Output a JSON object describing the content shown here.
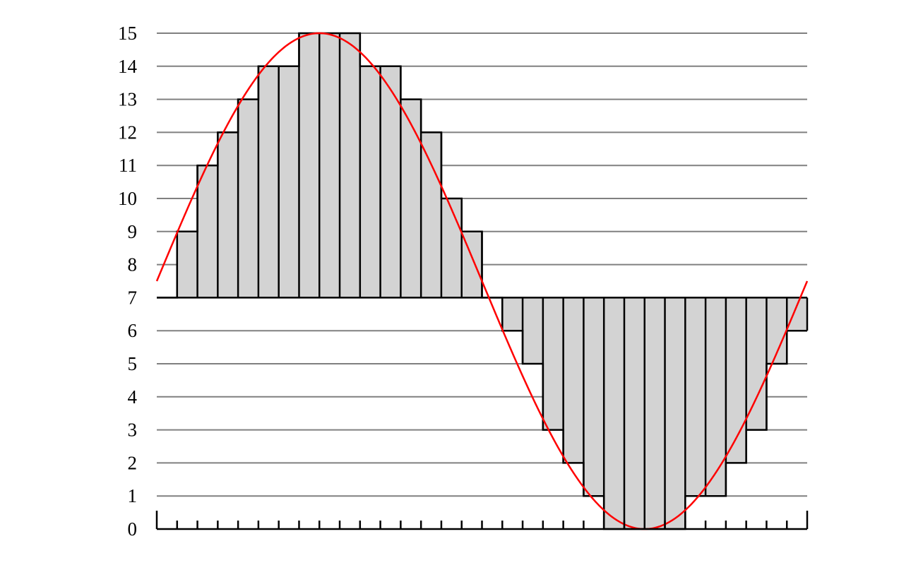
{
  "chart_data": {
    "type": "line",
    "title": "",
    "xlabel": "",
    "ylabel": "",
    "y_ticks": [
      "0",
      "1",
      "2",
      "3",
      "4",
      "5",
      "6",
      "7",
      "8",
      "9",
      "10",
      "11",
      "12",
      "13",
      "14",
      "15"
    ],
    "ylim": [
      0,
      15
    ],
    "x_sample_count": 32,
    "grid": true,
    "series": [
      {
        "kind": "step",
        "values": [
          7,
          9,
          11,
          12,
          13,
          14,
          14,
          15,
          15,
          15,
          14,
          14,
          13,
          12,
          10,
          9,
          7,
          6,
          5,
          3,
          2,
          1,
          0,
          0,
          0,
          0,
          1,
          1,
          2,
          3,
          5,
          6
        ]
      },
      {
        "kind": "sine",
        "offset": 7.5,
        "amplitude": 7.5,
        "periods": 1
      }
    ],
    "colors": {
      "grid": "#808080",
      "step_fill": "#d3d3d3",
      "step_line": "#000000",
      "sine": "#ff0000",
      "axis": "#000000"
    }
  }
}
